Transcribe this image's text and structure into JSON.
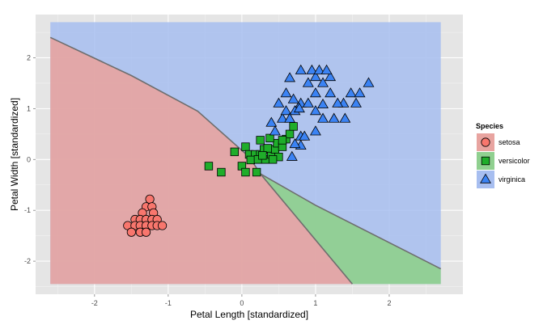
{
  "chart_data": {
    "type": "scatter",
    "title": "",
    "xlabel": "Petal Length [standardized]",
    "ylabel": "Petal Width [standardized]",
    "xlim": [
      -2.8,
      3.0
    ],
    "ylim": [
      -2.65,
      2.85
    ],
    "x_ticks": [
      -2,
      -1,
      0,
      1,
      2
    ],
    "y_ticks": [
      -2,
      -1,
      0,
      1,
      2
    ],
    "grid": true,
    "legend": {
      "title": "Species",
      "placement": "right"
    },
    "region_extent": {
      "x": [
        -2.6,
        2.7
      ],
      "y": [
        -2.45,
        2.7
      ]
    },
    "decision_regions": [
      {
        "name": "setosa",
        "color": "#E8A4A0"
      },
      {
        "name": "versicolor",
        "color": "#90D090"
      },
      {
        "name": "virginica",
        "color": "#A7BEF0"
      }
    ],
    "boundaries": [
      {
        "points": [
          [
            -2.6,
            2.4
          ],
          [
            -1.5,
            1.65
          ],
          [
            -0.6,
            0.95
          ],
          [
            0.1,
            0.05
          ],
          [
            0.25,
            -0.28
          ],
          [
            1.5,
            -2.45
          ]
        ]
      },
      {
        "points": [
          [
            0.25,
            -0.28
          ],
          [
            1.0,
            -0.9
          ],
          [
            2.7,
            -2.15
          ]
        ]
      }
    ],
    "series": [
      {
        "name": "setosa",
        "marker": "circle",
        "color": "#F8766D",
        "points": [
          [
            -1.25,
            -0.78
          ],
          [
            -1.3,
            -0.93
          ],
          [
            -1.22,
            -0.93
          ],
          [
            -1.35,
            -1.05
          ],
          [
            -1.2,
            -1.05
          ],
          [
            -1.45,
            -1.18
          ],
          [
            -1.38,
            -1.18
          ],
          [
            -1.3,
            -1.18
          ],
          [
            -1.22,
            -1.18
          ],
          [
            -1.15,
            -1.18
          ],
          [
            -1.55,
            -1.3
          ],
          [
            -1.45,
            -1.3
          ],
          [
            -1.38,
            -1.3
          ],
          [
            -1.3,
            -1.3
          ],
          [
            -1.22,
            -1.3
          ],
          [
            -1.15,
            -1.3
          ],
          [
            -1.08,
            -1.3
          ],
          [
            -1.5,
            -1.43
          ],
          [
            -1.38,
            -1.43
          ],
          [
            -1.3,
            -1.43
          ]
        ]
      },
      {
        "name": "versicolor",
        "marker": "square",
        "color": "#1FAD2A",
        "points": [
          [
            -0.45,
            -0.13
          ],
          [
            -0.28,
            -0.25
          ],
          [
            -0.1,
            0.15
          ],
          [
            0.05,
            0.25
          ],
          [
            0.0,
            -0.13
          ],
          [
            0.1,
            0.1
          ],
          [
            0.18,
            0.1
          ],
          [
            0.25,
            0.1
          ],
          [
            0.3,
            0.2
          ],
          [
            0.12,
            -0.01
          ],
          [
            0.22,
            0.0
          ],
          [
            0.32,
            0.0
          ],
          [
            0.4,
            0.1
          ],
          [
            0.45,
            0.2
          ],
          [
            0.48,
            0.32
          ],
          [
            0.55,
            0.25
          ],
          [
            0.6,
            0.4
          ],
          [
            0.65,
            0.5
          ],
          [
            0.7,
            0.65
          ],
          [
            0.38,
            0.42
          ],
          [
            0.5,
            0.05
          ],
          [
            0.42,
            0.0
          ],
          [
            0.2,
            -0.25
          ],
          [
            0.05,
            -0.25
          ],
          [
            0.25,
            0.38
          ],
          [
            0.35,
            0.22
          ],
          [
            0.55,
            0.38
          ],
          [
            0.28,
            0.08
          ]
        ]
      },
      {
        "name": "virginica",
        "marker": "triangle",
        "color": "#3B83F4",
        "points": [
          [
            0.68,
            0.05
          ],
          [
            0.8,
            0.27
          ],
          [
            0.8,
            0.45
          ],
          [
            0.4,
            0.72
          ],
          [
            0.55,
            0.8
          ],
          [
            0.6,
            0.95
          ],
          [
            0.72,
            0.95
          ],
          [
            0.8,
            1.1
          ],
          [
            0.9,
            1.1
          ],
          [
            1.0,
            0.95
          ],
          [
            1.1,
            0.8
          ],
          [
            1.25,
            0.8
          ],
          [
            1.4,
            0.8
          ],
          [
            1.55,
            1.1
          ],
          [
            1.48,
            1.3
          ],
          [
            1.38,
            1.1
          ],
          [
            1.2,
            1.3
          ],
          [
            1.1,
            1.5
          ],
          [
            1.2,
            1.62
          ],
          [
            1.0,
            1.62
          ],
          [
            0.9,
            1.5
          ],
          [
            0.8,
            1.75
          ],
          [
            0.95,
            1.75
          ],
          [
            1.05,
            1.75
          ],
          [
            1.15,
            1.75
          ],
          [
            0.65,
            1.6
          ],
          [
            0.6,
            1.3
          ],
          [
            0.7,
            1.18
          ],
          [
            1.0,
            1.3
          ],
          [
            1.3,
            1.1
          ],
          [
            0.65,
            0.8
          ],
          [
            1.0,
            0.55
          ],
          [
            0.5,
            1.1
          ],
          [
            1.1,
            1.08
          ],
          [
            0.85,
            0.45
          ],
          [
            0.72,
            0.3
          ],
          [
            1.72,
            1.5
          ],
          [
            1.6,
            1.3
          ],
          [
            0.45,
            0.55
          ],
          [
            0.78,
            1.0
          ]
        ]
      }
    ]
  }
}
